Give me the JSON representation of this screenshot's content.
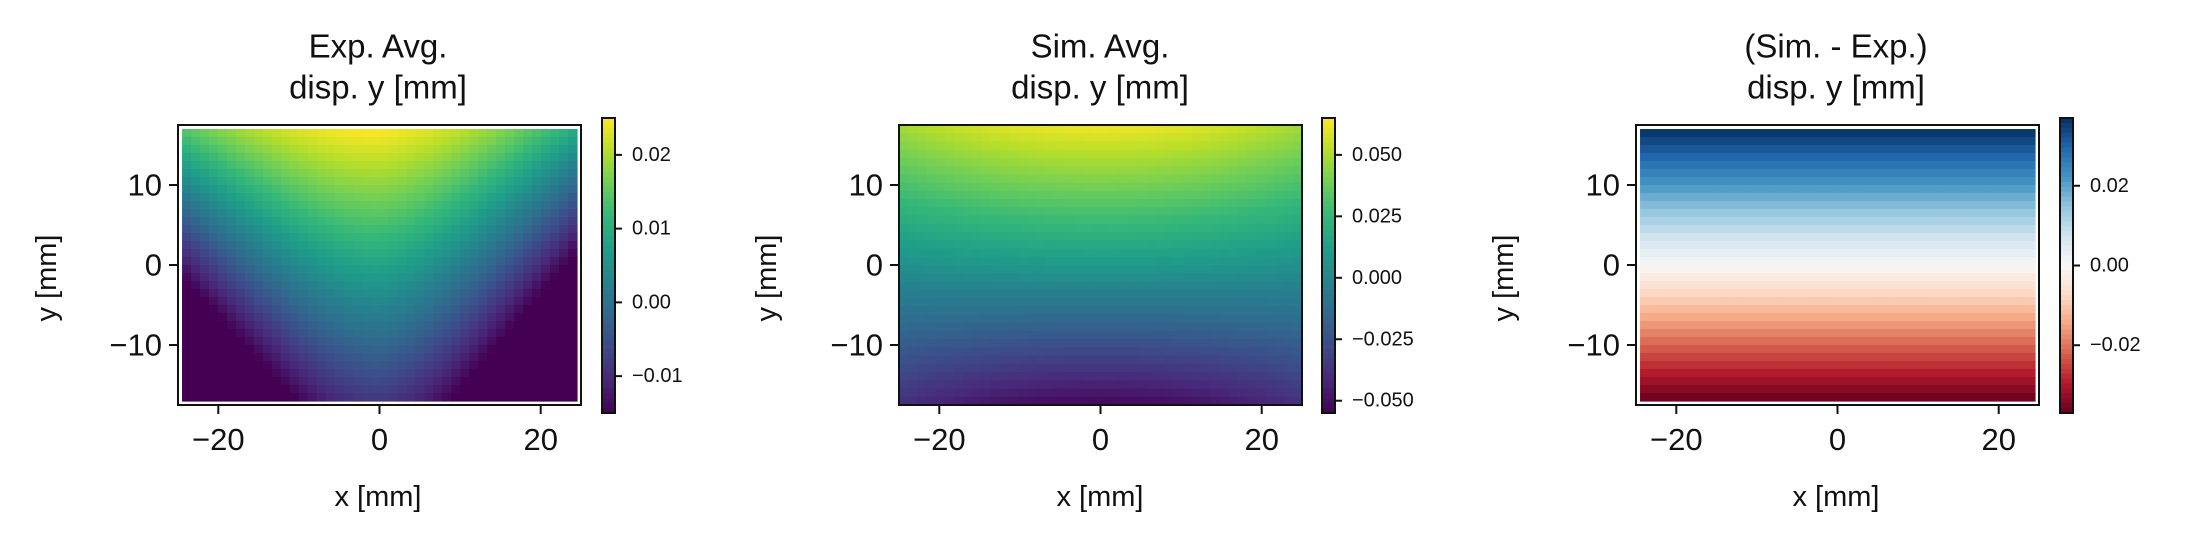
{
  "chart_data": [
    {
      "type": "heatmap",
      "title": [
        "Exp. Avg.",
        "disp. y [mm]"
      ],
      "xlabel": "x [mm]",
      "ylabel": "y [mm]",
      "xlim": [
        -25,
        25
      ],
      "ylim": [
        -17.5,
        17.5
      ],
      "xticks": [
        -20,
        0,
        20
      ],
      "xtick_labels": [
        "−20",
        "0",
        "20"
      ],
      "yticks": [
        -10,
        0,
        10
      ],
      "ytick_labels": [
        "−10",
        "0",
        "10"
      ],
      "colormap": "viridis",
      "clim": [
        -0.015,
        0.025
      ],
      "colorbar_ticks": [
        -0.01,
        0.0,
        0.01,
        0.02
      ],
      "colorbar_tick_labels": [
        "−0.01",
        "0.00",
        "0.01",
        "0.02"
      ],
      "field": {
        "x": [
          -24.5,
          24.5
        ],
        "y": [
          -17,
          17
        ],
        "pattern": "dome",
        "min_value": -0.015,
        "max_value": 0.025
      }
    },
    {
      "type": "heatmap",
      "title": [
        "Sim. Avg.",
        "disp. y [mm]"
      ],
      "xlabel": "x [mm]",
      "ylabel": "y [mm]",
      "xlim": [
        -25,
        25
      ],
      "ylim": [
        -17.5,
        17.5
      ],
      "xticks": [
        -20,
        0,
        20
      ],
      "xtick_labels": [
        "−20",
        "0",
        "20"
      ],
      "yticks": [
        -10,
        0,
        10
      ],
      "ytick_labels": [
        "−10",
        "0",
        "10"
      ],
      "colormap": "viridis",
      "clim": [
        -0.055,
        0.065
      ],
      "colorbar_ticks": [
        -0.05,
        -0.025,
        0.0,
        0.025,
        0.05
      ],
      "colorbar_tick_labels": [
        "−0.050",
        "−0.025",
        "0.000",
        "0.025",
        "0.050"
      ],
      "field": {
        "x": [
          -25,
          25
        ],
        "y": [
          -17.5,
          17.5
        ],
        "pattern": "saddle",
        "min_value": -0.055,
        "max_value": 0.065
      }
    },
    {
      "type": "heatmap",
      "title": [
        "(Sim. - Exp.)",
        "disp. y [mm]"
      ],
      "xlabel": "x [mm]",
      "ylabel": "y [mm]",
      "xlim": [
        -25,
        25
      ],
      "ylim": [
        -17.5,
        17.5
      ],
      "xticks": [
        -20,
        0,
        20
      ],
      "xtick_labels": [
        "−20",
        "0",
        "20"
      ],
      "yticks": [
        -10,
        0,
        10
      ],
      "ytick_labels": [
        "−10",
        "0",
        "10"
      ],
      "colormap": "RdBu",
      "clim": [
        -0.037,
        0.037
      ],
      "colorbar_ticks": [
        -0.02,
        0.0,
        0.02
      ],
      "colorbar_tick_labels": [
        "−0.02",
        "0.00",
        "0.02"
      ],
      "field": {
        "x": [
          -24.5,
          24.5
        ],
        "y": [
          -17,
          17
        ],
        "pattern": "linear-y",
        "min_value": -0.037,
        "max_value": 0.037
      }
    }
  ]
}
